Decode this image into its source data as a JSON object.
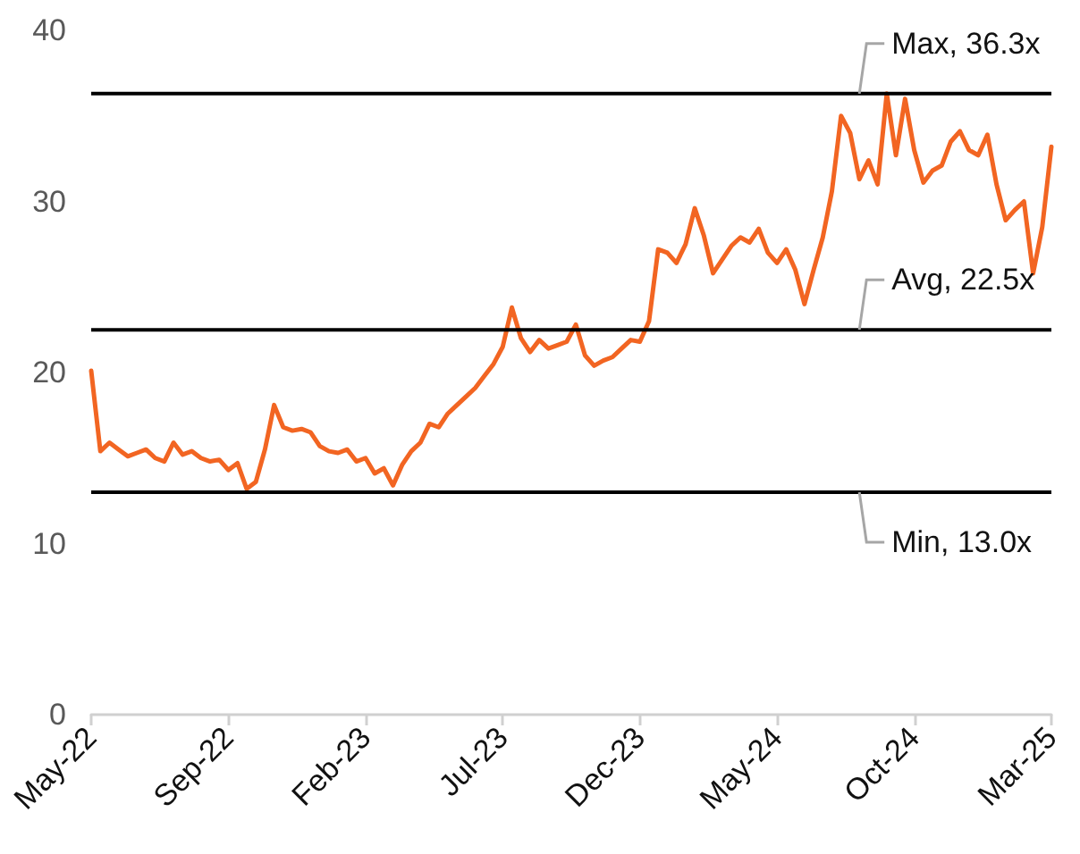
{
  "chart_data": {
    "type": "line",
    "categories": [
      "May-22",
      null,
      null,
      null,
      null,
      null,
      null,
      null,
      null,
      null,
      null,
      null,
      null,
      null,
      null,
      "Sep-22",
      null,
      null,
      null,
      null,
      null,
      null,
      null,
      null,
      null,
      null,
      null,
      null,
      null,
      null,
      "Feb-23",
      null,
      null,
      null,
      null,
      null,
      null,
      null,
      null,
      null,
      null,
      null,
      null,
      null,
      null,
      "Jul-23",
      null,
      null,
      null,
      null,
      null,
      null,
      null,
      null,
      null,
      null,
      null,
      null,
      null,
      null,
      "Dec-23",
      null,
      null,
      null,
      null,
      null,
      null,
      null,
      null,
      null,
      null,
      null,
      null,
      null,
      null,
      "May-24",
      null,
      null,
      null,
      null,
      null,
      null,
      null,
      null,
      null,
      null,
      null,
      null,
      null,
      null,
      "Oct-24",
      null,
      null,
      null,
      null,
      null,
      null,
      null,
      null,
      null,
      null,
      null,
      null,
      null,
      null,
      "Mar-25"
    ],
    "series": [
      {
        "color": "#f26522",
        "values": [
          20.1,
          15.4,
          15.9,
          15.5,
          15.1,
          15.3,
          15.5,
          15.0,
          14.8,
          15.9,
          15.2,
          15.4,
          15.0,
          14.8,
          14.9,
          14.3,
          14.7,
          13.2,
          13.6,
          15.5,
          18.1,
          16.8,
          16.6,
          16.7,
          16.5,
          15.7,
          15.4,
          15.3,
          15.5,
          14.8,
          15.0,
          14.1,
          14.4,
          13.4,
          14.6,
          15.4,
          15.9,
          17.0,
          16.8,
          17.6,
          18.1,
          18.6,
          19.1,
          19.8,
          20.5,
          21.5,
          23.8,
          22.0,
          21.2,
          21.9,
          21.4,
          21.6,
          21.8,
          22.8,
          21.0,
          20.4,
          20.7,
          20.9,
          21.4,
          21.9,
          21.8,
          23.0,
          27.2,
          27.0,
          26.4,
          27.5,
          29.6,
          28.0,
          25.8,
          26.6,
          27.4,
          27.9,
          27.6,
          28.4,
          27.0,
          26.4,
          27.2,
          26.0,
          24.0,
          26.0,
          27.9,
          30.6,
          35.0,
          34.0,
          31.3,
          32.4,
          31.0,
          36.3,
          32.7,
          36.0,
          33.0,
          31.1,
          31.8,
          32.1,
          33.5,
          34.1,
          33.0,
          32.7,
          33.9,
          31.0,
          28.9,
          29.5,
          30.0,
          25.8,
          28.5,
          33.2
        ]
      }
    ],
    "ylim": [
      0,
      40
    ],
    "yticks": [
      0,
      10,
      20,
      30,
      40
    ],
    "grid": false,
    "marker": "none",
    "line_style": "solid",
    "ref_lines": [
      {
        "axis": "y",
        "value": 36.3,
        "label": "Max, 36.3x",
        "color": "#000000"
      },
      {
        "axis": "y",
        "value": 22.5,
        "label": "Avg, 22.5x",
        "color": "#000000"
      },
      {
        "axis": "y",
        "value": 13.0,
        "label": "Min, 13.0x",
        "color": "#000000"
      }
    ]
  }
}
